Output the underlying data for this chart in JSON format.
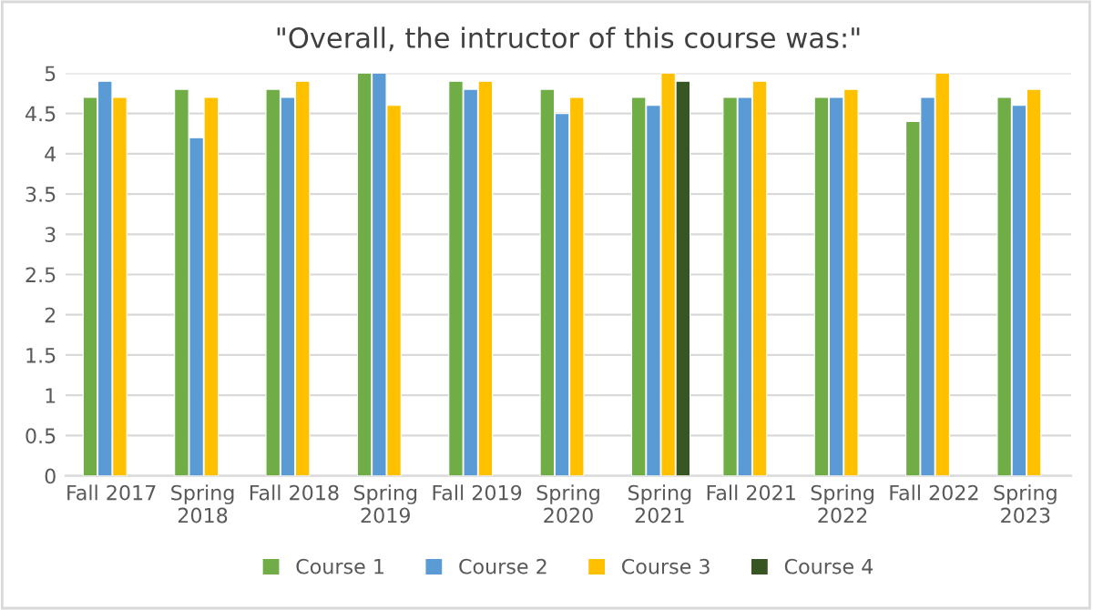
{
  "chart_data": {
    "type": "bar",
    "title": "\"Overall, the intructor of this course was:\"",
    "categories": [
      "Fall 2017",
      "Spring 2018",
      "Fall 2018",
      "Spring 2019",
      "Fall 2019",
      "Spring 2020",
      "Spring 2021",
      "Fall 2021",
      "Spring 2022",
      "Fall 2022",
      "Spring 2023"
    ],
    "series": [
      {
        "name": "Course 1",
        "color": "#70ad47",
        "values": [
          4.7,
          4.8,
          4.8,
          5,
          4.9,
          4.8,
          4.7,
          4.7,
          4.7,
          4.4,
          4.7
        ]
      },
      {
        "name": "Course 2",
        "color": "#5b9bd5",
        "values": [
          4.9,
          4.2,
          4.7,
          5,
          4.8,
          4.5,
          4.6,
          4.7,
          4.7,
          4.7,
          4.6
        ]
      },
      {
        "name": "Course 3",
        "color": "#ffc000",
        "values": [
          4.7,
          4.7,
          4.9,
          4.6,
          4.9,
          4.7,
          5,
          4.9,
          4.8,
          5,
          4.8
        ]
      },
      {
        "name": "Course 4",
        "color": "#375623",
        "values": [
          null,
          null,
          null,
          null,
          null,
          null,
          4.9,
          null,
          null,
          null,
          null
        ]
      }
    ],
    "ylim": [
      0,
      5
    ],
    "yticks": [
      0,
      0.5,
      1,
      1.5,
      2,
      2.5,
      3,
      3.5,
      4,
      4.5,
      5
    ],
    "grid": "y",
    "legend": "bottom"
  }
}
